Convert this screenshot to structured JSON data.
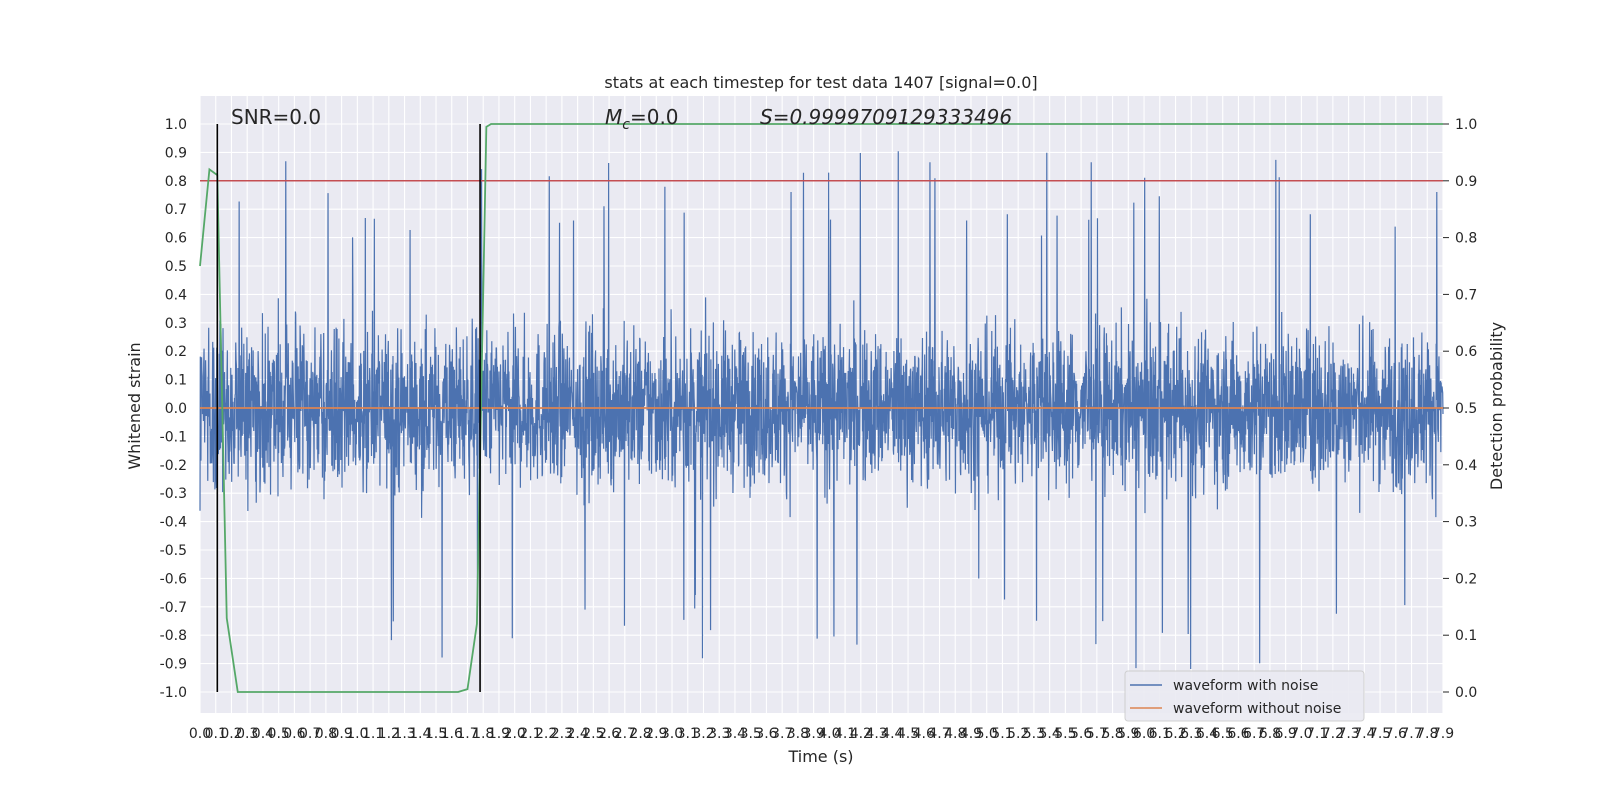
{
  "chart_data": {
    "type": "line",
    "title": "stats at each timestep for test data 1407 [signal=0.0]",
    "xlabel": "Time (s)",
    "ylabel": "Whitened strain",
    "y2label": "Detection probability",
    "xlim": [
      0.0,
      7.9
    ],
    "ylim": [
      -1.0,
      1.0
    ],
    "y2lim": [
      0.0,
      1.0
    ],
    "grid": true,
    "legend_position": "lower-right",
    "x_tick_labels": [
      "0.0",
      "0.1",
      "0.2",
      "0.3",
      "0.4",
      "0.5",
      "0.6",
      "0.7",
      "0.8",
      "0.9",
      "1.0",
      "1.1",
      "1.2",
      "1.3",
      "1.4",
      "1.5",
      "1.6",
      "1.7",
      "1.8",
      "1.9",
      "2.0",
      "2.1",
      "2.2",
      "2.3",
      "2.4",
      "2.5",
      "2.6",
      "2.7",
      "2.8",
      "2.9",
      "3.0",
      "3.1",
      "3.2",
      "3.3",
      "3.4",
      "3.5",
      "3.6",
      "3.7",
      "3.8",
      "3.9",
      "4.0",
      "4.1",
      "4.2",
      "4.3",
      "4.4",
      "4.5",
      "4.6",
      "4.7",
      "4.8",
      "4.9",
      "5.0",
      "5.1",
      "5.2",
      "5.3",
      "5.4",
      "5.5",
      "5.6",
      "5.7",
      "5.8",
      "5.9",
      "6.0",
      "6.1",
      "6.2",
      "6.3",
      "6.4",
      "6.5",
      "6.6",
      "6.7",
      "6.8",
      "6.9",
      "7.0",
      "7.1",
      "7.2",
      "7.3",
      "7.4",
      "7.5",
      "7.6",
      "7.7",
      "7.8",
      "7.9"
    ],
    "y_tick_labels": [
      "1.0",
      "0.9",
      "0.8",
      "0.7",
      "0.6",
      "0.5",
      "0.4",
      "0.3",
      "0.2",
      "0.1",
      "0.0",
      "-0.1",
      "-0.2",
      "-0.3",
      "-0.4",
      "-0.5",
      "-0.6",
      "-0.7",
      "-0.8",
      "-0.9",
      "-1.0"
    ],
    "y2_tick_labels": [
      "1.0",
      "0.9",
      "0.8",
      "0.7",
      "0.6",
      "0.5",
      "0.4",
      "0.3",
      "0.2",
      "0.1",
      "0.0"
    ],
    "annotations": {
      "snr": "SNR=0.0",
      "mc_symbol": "M",
      "mc_sub": "c",
      "mc_value": "=0.0",
      "s": "S=0.9999709129333496"
    },
    "vertical_lines_x": [
      0.11,
      1.78
    ],
    "threshold_y2": 0.9,
    "series": [
      {
        "name": "waveform with noise",
        "color": "#4c72b0",
        "axis": "left",
        "representation": "dense noise trace, amplitude mostly within ±0.4, spikes up to about ±0.9"
      },
      {
        "name": "waveform without noise",
        "color": "#dd8452",
        "axis": "left",
        "x": [
          0.0,
          7.9
        ],
        "y": [
          0.0,
          0.0
        ]
      },
      {
        "color": "#55a868",
        "axis": "right",
        "x": [
          0.0,
          0.06,
          0.11,
          0.17,
          0.24,
          0.5,
          1.0,
          1.5,
          1.64,
          1.7,
          1.76,
          1.82,
          1.85,
          1.9,
          2.5,
          7.9
        ],
        "y": [
          0.75,
          0.92,
          0.91,
          0.13,
          0.0,
          0.0,
          0.0,
          0.0,
          0.0,
          0.005,
          0.12,
          0.995,
          1.0,
          1.0,
          1.0,
          1.0
        ]
      },
      {
        "color": "#c44e52",
        "axis": "right",
        "x": [
          0.0,
          7.9
        ],
        "y": [
          0.9,
          0.9
        ]
      }
    ]
  }
}
